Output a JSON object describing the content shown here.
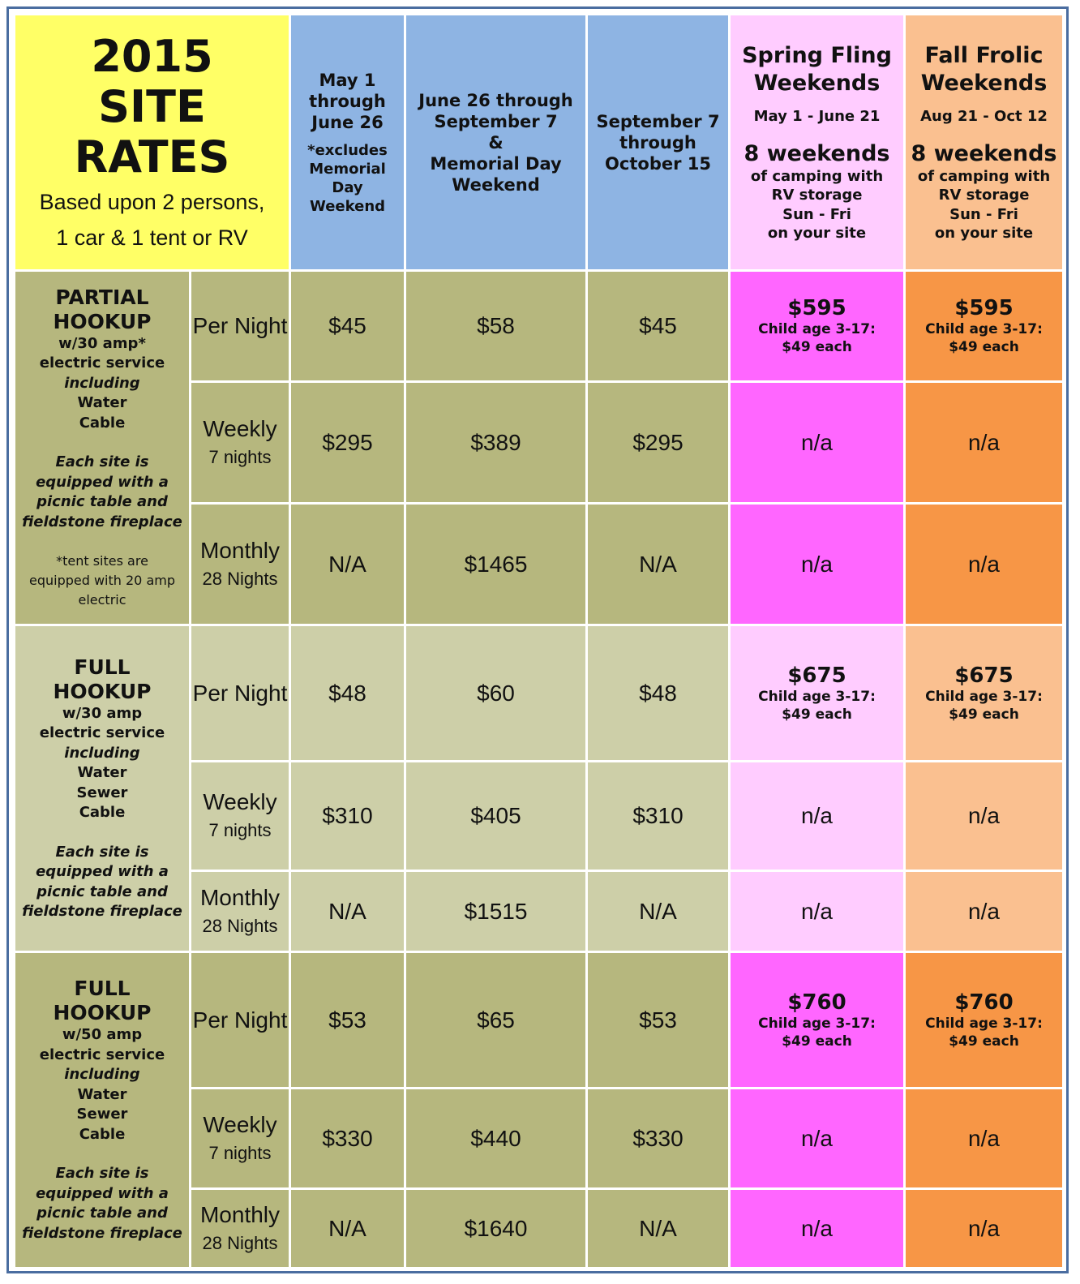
{
  "title": {
    "line1": "2015",
    "line2": "SITE",
    "line3": "RATES",
    "sub1": "Based upon 2 persons,",
    "sub2": "1 car & 1 tent or RV"
  },
  "columns": {
    "c1": {
      "line1": "May 1",
      "line2": "through",
      "line3": "June 26",
      "note1": "*excludes",
      "note2": "Memorial",
      "note3": "Day",
      "note4": "Weekend"
    },
    "c2": {
      "line1": "June 26 through",
      "line2": "September 7",
      "line3": "&",
      "line4": "Memorial Day",
      "line5": "Weekend"
    },
    "c3": {
      "line1": "September 7",
      "line2": "through",
      "line3": "October 15"
    },
    "spring": {
      "name1": "Spring Fling",
      "name2": "Weekends",
      "dates": "May 1 - June 21",
      "weeks": "8 weekends",
      "d1": "of camping with",
      "d2": "RV storage",
      "d3": "Sun - Fri",
      "d4": "on your site"
    },
    "fall": {
      "name1": "Fall Frolic",
      "name2": "Weekends",
      "dates": "Aug 21 - Oct 12",
      "weeks": "8 weekends",
      "d1": "of camping with",
      "d2": "RV storage",
      "d3": "Sun - Fri",
      "d4": "on your site"
    }
  },
  "groups": [
    {
      "name1": "PARTIAL",
      "name2": "HOOKUP",
      "amp": "w/30 amp*",
      "service": "electric service",
      "including": "including",
      "features": [
        "Water",
        "Cable"
      ],
      "note": [
        "Each site is",
        "equipped with a",
        "picnic table and",
        "fieldstone fireplace"
      ],
      "tent_note": [
        "*tent sites are",
        "equipped with 20 amp",
        "electric"
      ],
      "rows": [
        {
          "period": "Per Night",
          "period_sub": "",
          "c1": "$45",
          "c2": "$58",
          "c3": "$45",
          "spring_price": "$595",
          "spring_child1": "Child age 3-17:",
          "spring_child2": "$49 each",
          "fall_price": "$595",
          "fall_child1": "Child age 3-17:",
          "fall_child2": "$49 each"
        },
        {
          "period": "Weekly",
          "period_sub": "7 nights",
          "c1": "$295",
          "c2": "$389",
          "c3": "$295",
          "spring": "n/a",
          "fall": "n/a"
        },
        {
          "period": "Monthly",
          "period_sub": "28 Nights",
          "c1": "N/A",
          "c2": "$1465",
          "c3": "N/A",
          "spring": "n/a",
          "fall": "n/a"
        }
      ]
    },
    {
      "name1": "FULL",
      "name2": "HOOKUP",
      "amp": "w/30 amp",
      "service": "electric service",
      "including": "including",
      "features": [
        "Water",
        "Sewer",
        "Cable"
      ],
      "note": [
        "Each site is",
        "equipped with a",
        "picnic table and",
        "fieldstone fireplace"
      ],
      "rows": [
        {
          "period": "Per Night",
          "period_sub": "",
          "c1": "$48",
          "c2": "$60",
          "c3": "$48",
          "spring_price": "$675",
          "spring_child1": "Child age 3-17:",
          "spring_child2": "$49 each",
          "fall_price": "$675",
          "fall_child1": "Child age 3-17:",
          "fall_child2": "$49 each"
        },
        {
          "period": "Weekly",
          "period_sub": "7 nights",
          "c1": "$310",
          "c2": "$405",
          "c3": "$310",
          "spring": "n/a",
          "fall": "n/a"
        },
        {
          "period": "Monthly",
          "period_sub": "28 Nights",
          "c1": "N/A",
          "c2": "$1515",
          "c3": "N/A",
          "spring": "n/a",
          "fall": "n/a"
        }
      ]
    },
    {
      "name1": "FULL",
      "name2": "HOOKUP",
      "amp": "w/50 amp",
      "service": "electric service",
      "including": "including",
      "features": [
        "Water",
        "Sewer",
        "Cable"
      ],
      "note": [
        "Each site is",
        "equipped with a",
        "picnic table and",
        "fieldstone fireplace"
      ],
      "rows": [
        {
          "period": "Per Night",
          "period_sub": "",
          "c1": "$53",
          "c2": "$65",
          "c3": "$53",
          "spring_price": "$760",
          "spring_child1": "Child age 3-17:",
          "spring_child2": "$49 each",
          "fall_price": "$760",
          "fall_child1": "Child age 3-17:",
          "fall_child2": "$49 each"
        },
        {
          "period": "Weekly",
          "period_sub": "7 nights",
          "c1": "$330",
          "c2": "$440",
          "c3": "$330",
          "spring": "n/a",
          "fall": "n/a"
        },
        {
          "period": "Monthly",
          "period_sub": "28 Nights",
          "c1": "N/A",
          "c2": "$1640",
          "c3": "N/A",
          "spring": "n/a",
          "fall": "n/a"
        }
      ]
    }
  ]
}
